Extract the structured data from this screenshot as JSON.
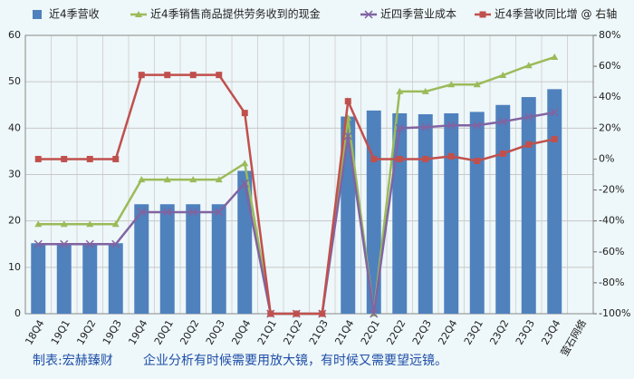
{
  "chart_data": {
    "type": "bar-line",
    "categories": [
      "18Q4",
      "19Q1",
      "19Q2",
      "19Q3",
      "19Q4",
      "20Q1",
      "20Q2",
      "20Q3",
      "20Q4",
      "21Q1",
      "21Q2",
      "21Q3",
      "21Q4",
      "22Q1",
      "22Q2",
      "22Q3",
      "22Q4",
      "23Q1",
      "23Q2",
      "23Q3",
      "23Q4",
      "萤石网络"
    ],
    "series": [
      {
        "name": "近4季营收",
        "type": "bar",
        "color": "#4f81bd",
        "values": [
          15.2,
          15.2,
          15.2,
          15.2,
          23.6,
          23.6,
          23.6,
          23.6,
          30.8,
          0,
          0,
          0,
          42.5,
          43.8,
          43.2,
          43.0,
          43.2,
          43.5,
          45.0,
          46.7,
          48.4,
          null
        ]
      },
      {
        "name": "近4季销售商品提供劳务收到的现金",
        "type": "line",
        "marker": "triangle",
        "color": "#9bbb59",
        "values": [
          19.3,
          19.3,
          19.3,
          19.3,
          28.9,
          28.9,
          28.9,
          28.9,
          32.4,
          0,
          0,
          0,
          42.2,
          0,
          47.9,
          47.9,
          49.4,
          49.4,
          51.4,
          53.5,
          55.3,
          null
        ]
      },
      {
        "name": "近四季营业成本",
        "type": "line",
        "marker": "cross",
        "color": "#8064a2",
        "values": [
          15.0,
          15.0,
          15.0,
          15.0,
          21.9,
          21.9,
          21.9,
          21.9,
          28.1,
          0,
          0,
          0,
          38.3,
          0,
          40.0,
          40.2,
          40.6,
          40.6,
          41.4,
          42.4,
          43.4,
          null
        ]
      },
      {
        "name": "近4季营收同比增 @ 右轴",
        "type": "line",
        "marker": "square",
        "axis": "y2",
        "color": "#c0504d",
        "values": [
          0,
          0,
          0,
          0,
          54.4,
          54.4,
          54.4,
          54.4,
          29.8,
          -100,
          -100,
          -100,
          37.4,
          0,
          0,
          0,
          1.8,
          -1.2,
          3.5,
          9.4,
          12.9,
          null
        ]
      }
    ],
    "ylim": [
      0,
      60
    ],
    "yticks": [
      0,
      10,
      20,
      30,
      40,
      50,
      60
    ],
    "y2lim": [
      -100,
      80
    ],
    "y2ticks": [
      {
        "value": -100,
        "label": "-100%"
      },
      {
        "value": -80,
        "label": "-80%"
      },
      {
        "value": -60,
        "label": "-60%"
      },
      {
        "value": -40,
        "label": "-40%"
      },
      {
        "value": -20,
        "label": "-20%"
      },
      {
        "value": 0,
        "label": "0%"
      },
      {
        "value": 20,
        "label": "20%"
      },
      {
        "value": 40,
        "label": "40%"
      },
      {
        "value": 60,
        "label": "60%"
      },
      {
        "value": 80,
        "label": "80%"
      }
    ],
    "grid": true,
    "footer": [
      "制表:宏赫臻财",
      "企业分析有时候需要用放大镜，有时候又需要望远镜。"
    ]
  }
}
